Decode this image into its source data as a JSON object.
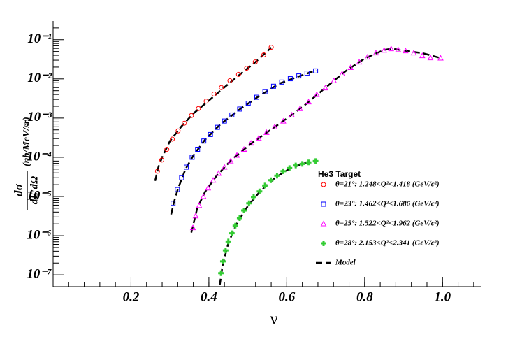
{
  "chart_data": {
    "type": "scatter",
    "xlabel": "ν",
    "ylabel": {
      "numerator": "dσ",
      "denominator": "dE′dΩ",
      "units": "(nb/MeV/sr)"
    },
    "legend_title": "He3 Target",
    "log_y": true,
    "xlim": [
      0,
      1.1
    ],
    "ylim": [
      5e-08,
      0.3
    ],
    "xticks": [
      0.2,
      0.4,
      0.6,
      0.8,
      {
        "value": 1,
        "label": "1.0"
      }
    ],
    "yticks": [
      {
        "value": 1e-07,
        "label": "10⁻⁷"
      },
      {
        "value": 1e-06,
        "label": "10⁻⁶"
      },
      {
        "value": 1e-05,
        "label": "10⁻⁵"
      },
      {
        "value": 0.0001,
        "label": "10⁻⁴"
      },
      {
        "value": 0.001,
        "label": "10⁻³"
      },
      {
        "value": 0.01,
        "label": "10⁻²"
      },
      {
        "value": 0.1,
        "label": "10⁻¹"
      }
    ],
    "series": [
      {
        "name": "θ=21°: 1.248<Q²<1.418 (GeV/c²)",
        "color": "#ff0000",
        "marker": "open-circle",
        "x": [
          0.268,
          0.279,
          0.292,
          0.306,
          0.321,
          0.337,
          0.355,
          0.373,
          0.393,
          0.413,
          0.432,
          0.454,
          0.476,
          0.497,
          0.519,
          0.541,
          0.56
        ],
        "values": [
          4.4e-05,
          8.5e-05,
          0.00016,
          0.00029,
          0.00047,
          0.00074,
          0.00116,
          0.00175,
          0.0027,
          0.0041,
          0.006,
          0.009,
          0.013,
          0.0187,
          0.027,
          0.041,
          0.064
        ]
      },
      {
        "name": "θ=23°: 1.462<Q²<1.686 (GeV/c²)",
        "color": "#0000ff",
        "marker": "open-square",
        "x": [
          0.308,
          0.319,
          0.33,
          0.342,
          0.357,
          0.371,
          0.387,
          0.404,
          0.422,
          0.44,
          0.459,
          0.479,
          0.501,
          0.523,
          0.544,
          0.566,
          0.587,
          0.609,
          0.631,
          0.652,
          0.674
        ],
        "values": [
          6.7e-06,
          1.5e-05,
          3e-05,
          5.6e-05,
          0.0001,
          0.00016,
          0.00026,
          0.00038,
          0.00058,
          0.00084,
          0.0012,
          0.0017,
          0.0024,
          0.0034,
          0.0047,
          0.0065,
          0.0083,
          0.0101,
          0.0119,
          0.014,
          0.016
        ]
      },
      {
        "name": "θ=25°: 1.522<Q²<1.962 (GeV/c²)",
        "color": "#ff00ff",
        "marker": "open-triangle",
        "x": [
          0.359,
          0.366,
          0.375,
          0.386,
          0.398,
          0.411,
          0.425,
          0.44,
          0.456,
          0.472,
          0.49,
          0.508,
          0.528,
          0.548,
          0.569,
          0.591,
          0.613,
          0.634,
          0.656,
          0.677,
          0.699,
          0.721,
          0.742,
          0.764,
          0.786,
          0.807,
          0.829,
          0.85,
          0.868,
          0.886,
          0.905,
          0.926,
          0.948,
          0.969,
          0.995
        ],
        "values": [
          1.6e-06,
          3.2e-06,
          5.9e-06,
          1e-05,
          1.65e-05,
          2.6e-05,
          3.9e-05,
          5.6e-05,
          8.1e-05,
          0.000113,
          0.00016,
          0.00023,
          0.00031,
          0.00043,
          0.0006,
          0.00084,
          0.0012,
          0.00175,
          0.0026,
          0.004,
          0.0059,
          0.009,
          0.0135,
          0.0195,
          0.027,
          0.036,
          0.046,
          0.054,
          0.059,
          0.056,
          0.052,
          0.046,
          0.039,
          0.0345,
          0.034
        ]
      },
      {
        "name": "θ=28°: 2.153<Q²<2.341 (GeV/c²)",
        "color": "#33cc33",
        "marker": "filled-cross",
        "x": [
          0.431,
          0.436,
          0.443,
          0.45,
          0.459,
          0.468,
          0.479,
          0.49,
          0.503,
          0.515,
          0.53,
          0.544,
          0.559,
          0.575,
          0.591,
          0.607,
          0.623,
          0.64,
          0.656,
          0.674
        ],
        "values": [
          1.1e-07,
          2.2e-07,
          4.2e-07,
          7.1e-07,
          1.15e-06,
          1.8e-06,
          2.8e-06,
          4.4e-06,
          6.7e-06,
          9.7e-06,
          1.35e-05,
          1.9e-05,
          2.6e-05,
          3.4e-05,
          4.4e-05,
          5.3e-05,
          6.2e-05,
          6.8e-05,
          7.4e-05,
          8e-05
        ]
      }
    ],
    "model": {
      "name": "Model",
      "color": "#000000",
      "curves": [
        {
          "x": [
            0.262,
            0.27,
            0.28,
            0.3,
            0.33,
            0.36,
            0.4,
            0.44,
            0.48,
            0.52,
            0.56
          ],
          "values": [
            2.5e-05,
            5.5e-05,
            0.0001,
            0.00026,
            0.00062,
            0.0013,
            0.0028,
            0.0061,
            0.013,
            0.027,
            0.063
          ]
        },
        {
          "x": [
            0.303,
            0.31,
            0.32,
            0.34,
            0.36,
            0.39,
            0.43,
            0.48,
            0.53,
            0.58,
            0.63,
            0.675
          ],
          "values": [
            3.5e-06,
            7e-06,
            1.5e-05,
            5e-05,
            0.00011,
            0.00028,
            0.0007,
            0.0017,
            0.0037,
            0.0075,
            0.0115,
            0.0165
          ]
        },
        {
          "x": [
            0.355,
            0.37,
            0.39,
            0.42,
            0.46,
            0.51,
            0.57,
            0.61,
            0.65,
            0.7,
            0.75,
            0.8,
            0.85,
            0.87,
            0.9,
            0.95,
            0.995
          ],
          "values": [
            1.2e-06,
            5e-06,
            1.3e-05,
            3.4e-05,
            9e-05,
            0.00023,
            0.0006,
            0.00115,
            0.0023,
            0.006,
            0.0155,
            0.033,
            0.055,
            0.059,
            0.053,
            0.045,
            0.034
          ]
        },
        {
          "x": [
            0.428,
            0.435,
            0.45,
            0.47,
            0.5,
            0.53,
            0.57,
            0.61,
            0.645,
            0.674
          ],
          "values": [
            5.5e-08,
            1.7e-07,
            6.5e-07,
            1.9e-06,
            5.7e-06,
            1.3e-05,
            3e-05,
            5.3e-05,
            7e-05,
            7.9e-05
          ]
        }
      ]
    }
  }
}
